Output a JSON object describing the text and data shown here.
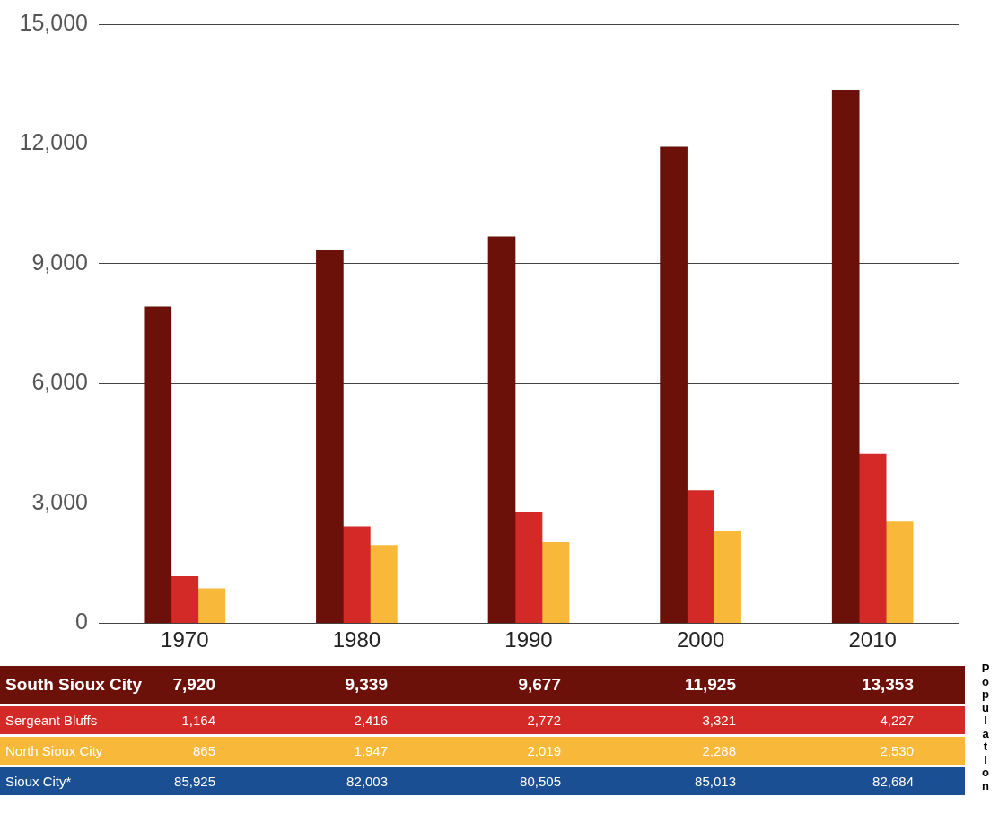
{
  "chart_data": {
    "type": "bar",
    "ylabel": "Population",
    "categories": [
      "1970",
      "1980",
      "1990",
      "2000",
      "2010"
    ],
    "series": [
      {
        "name": "South Sioux City",
        "color": "#6b1109",
        "values": [
          7920,
          9339,
          9677,
          11925,
          13353
        ],
        "value_labels": [
          "7,920",
          "9,339",
          "9,677",
          "11,925",
          "13,353"
        ]
      },
      {
        "name": "Sergeant Bluffs",
        "color": "#d42a27",
        "values": [
          1164,
          2416,
          2772,
          3321,
          4227
        ],
        "value_labels": [
          "1,164",
          "2,416",
          "2,772",
          "3,321",
          "4,227"
        ]
      },
      {
        "name": "North Sioux City",
        "color": "#f8b93a",
        "values": [
          865,
          1947,
          2019,
          2288,
          2530
        ],
        "value_labels": [
          "865",
          "1,947",
          "2,019",
          "2,288",
          "2,530"
        ]
      }
    ],
    "ylim": [
      0,
      15000
    ],
    "yticks": [
      0,
      {
        "value": 3000,
        "label": "3,000"
      },
      {
        "value": 6000,
        "label": "6,000"
      },
      {
        "value": 9000,
        "label": "9,000"
      },
      {
        "value": 12000,
        "label": "12,000"
      },
      {
        "value": 15000,
        "label": "15,000"
      }
    ],
    "grid": "y",
    "legend": false,
    "annotations": [
      "Sioux City*",
      "85,925",
      "82,003",
      "80,505",
      "85,013",
      "82,684"
    ]
  }
}
